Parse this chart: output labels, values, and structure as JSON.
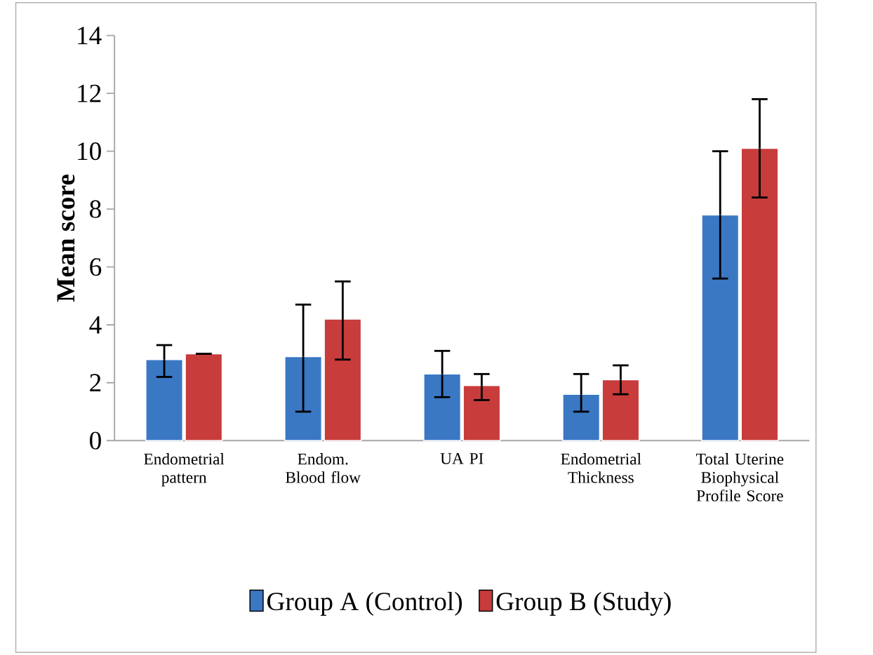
{
  "chart_data": {
    "type": "bar",
    "ylabel": "Mean score",
    "categories": [
      "Endometrial pattern",
      "Endom. Blood flow",
      "UA PI",
      "Endometrial Thickness",
      "Total Uterine Biophysical Profile Score"
    ],
    "series": [
      {
        "name": "Group A (Control)",
        "color": "#3a78c4",
        "values": [
          2.8,
          2.9,
          2.3,
          1.6,
          7.8
        ],
        "errors": [
          [
            2.2,
            3.3
          ],
          [
            1.0,
            4.7
          ],
          [
            1.5,
            3.1
          ],
          [
            1.0,
            2.3
          ],
          [
            5.6,
            10.0
          ]
        ]
      },
      {
        "name": "Group B  (Study)",
        "color": "#c83c3c",
        "values": [
          3.0,
          4.2,
          1.9,
          2.1,
          10.1
        ],
        "errors": [
          null,
          [
            2.8,
            5.5
          ],
          [
            1.4,
            2.3
          ],
          [
            1.6,
            2.6
          ],
          [
            8.4,
            11.8
          ]
        ]
      }
    ],
    "ylim": [
      0,
      14
    ],
    "yticks": [
      0,
      2,
      4,
      6,
      8,
      10,
      12,
      14
    ],
    "grid": false,
    "legend": "bottom"
  }
}
